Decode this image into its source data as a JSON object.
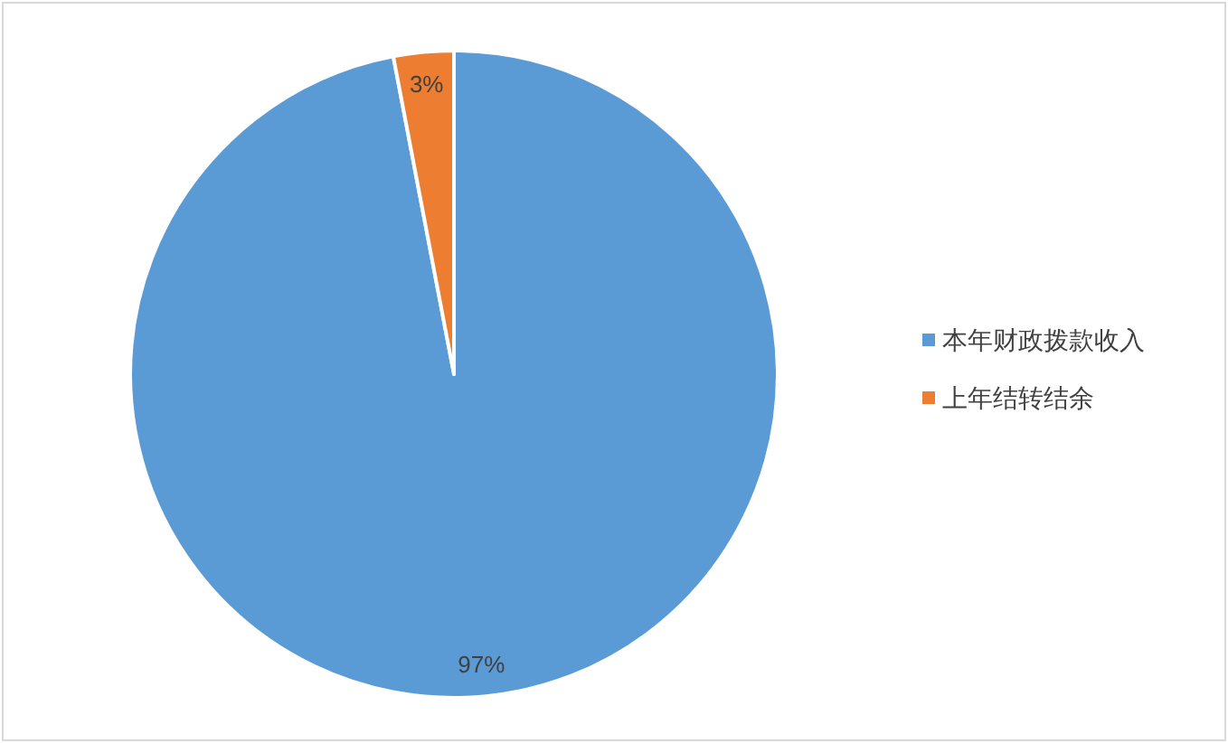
{
  "chart_data": {
    "type": "pie",
    "categories": [
      "本年财政拨款收入",
      "上年结转结余"
    ],
    "values": [
      97,
      3
    ],
    "colors": [
      "#5b9bd5",
      "#ed7d31"
    ],
    "value_labels": [
      "97%",
      "3%"
    ],
    "legend": "right"
  }
}
